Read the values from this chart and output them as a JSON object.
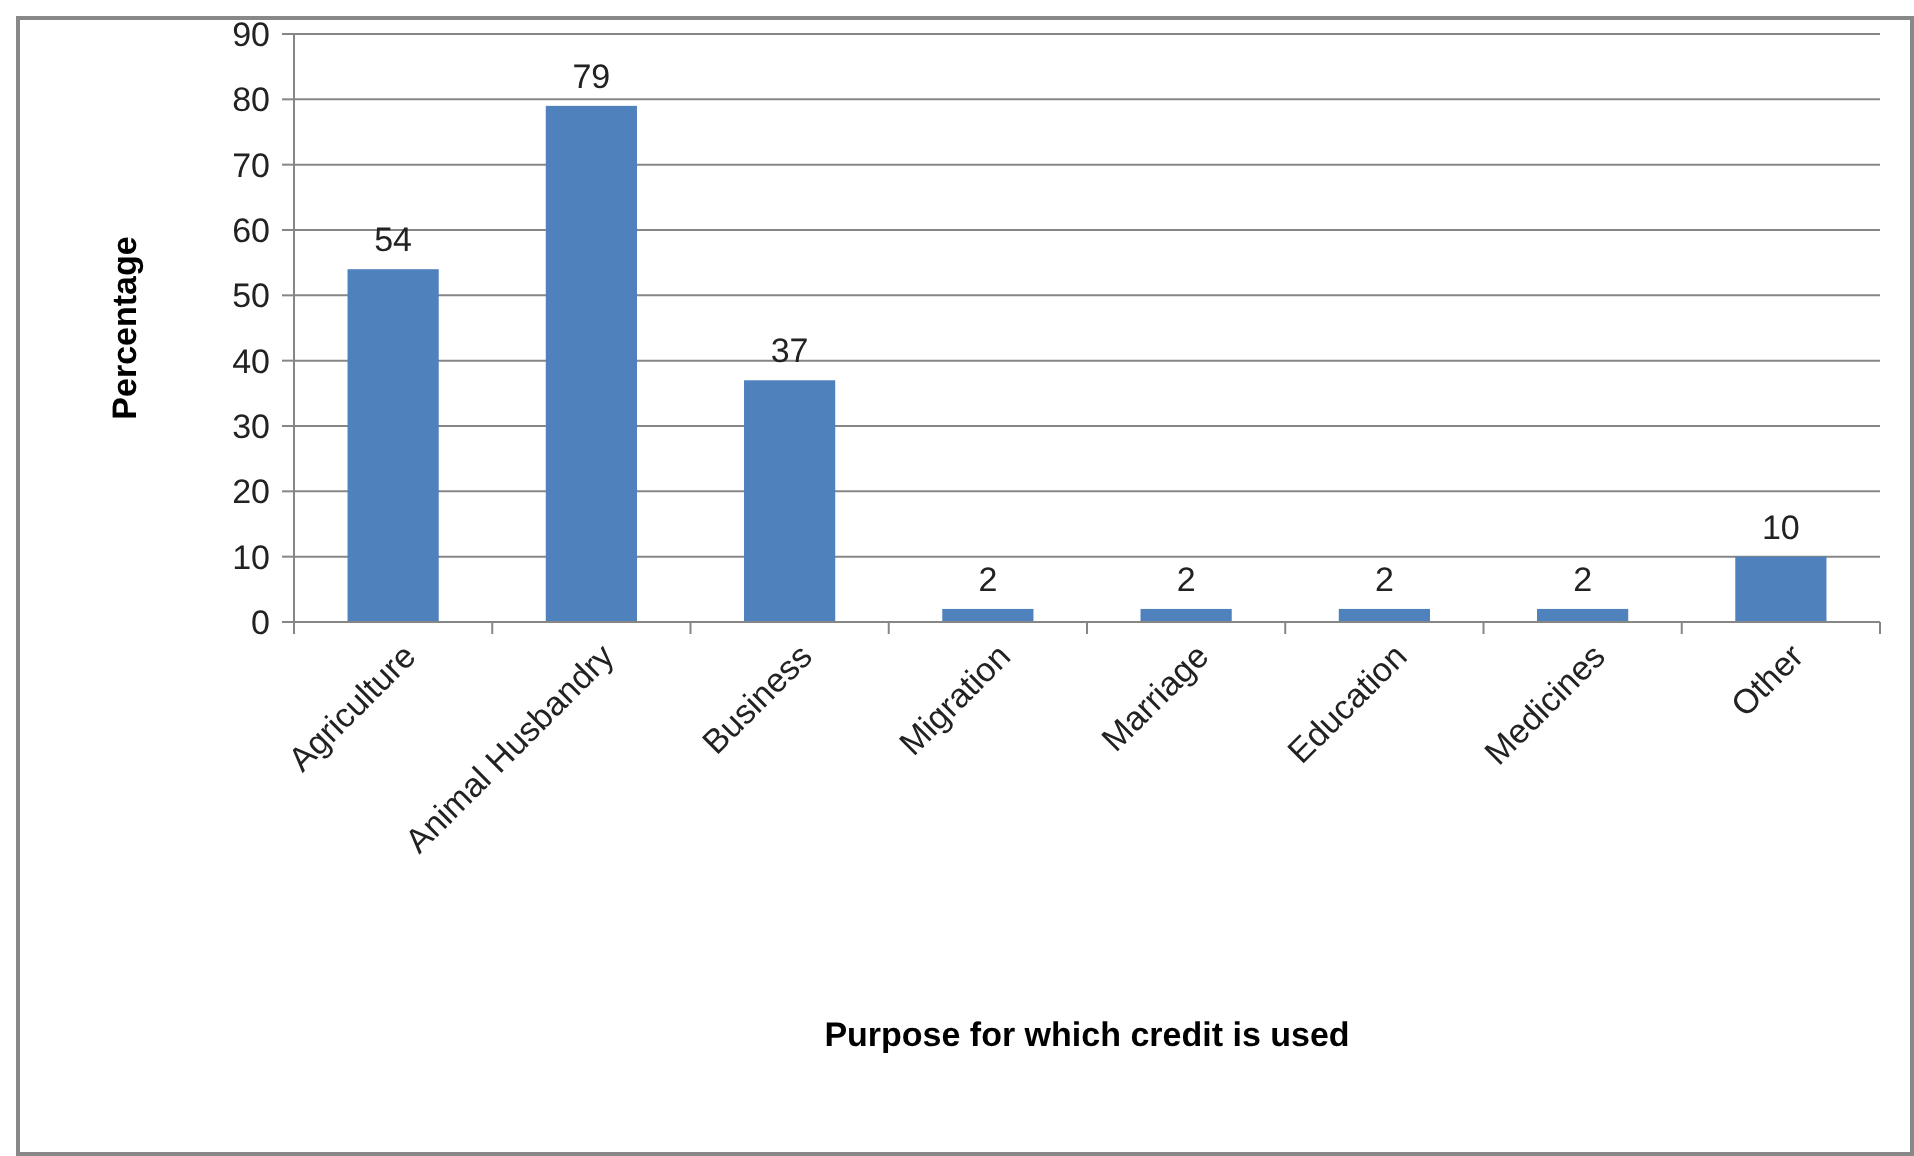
{
  "chart_data": {
    "type": "bar",
    "xlabel": "Purpose for which credit is used",
    "ylabel": "Percentage",
    "categories": [
      "Agriculture",
      "Animal Husbandry",
      "Business",
      "Migration",
      "Marriage",
      "Education",
      "Medicines",
      "Other"
    ],
    "values": [
      54,
      79,
      37,
      2,
      2,
      2,
      2,
      10
    ],
    "color": "#4f81bd",
    "ylim": [
      0,
      90
    ],
    "yticks": [
      0,
      10,
      20,
      30,
      40,
      50,
      60,
      70,
      80,
      90
    ],
    "grid": "y",
    "data_labels": true
  }
}
